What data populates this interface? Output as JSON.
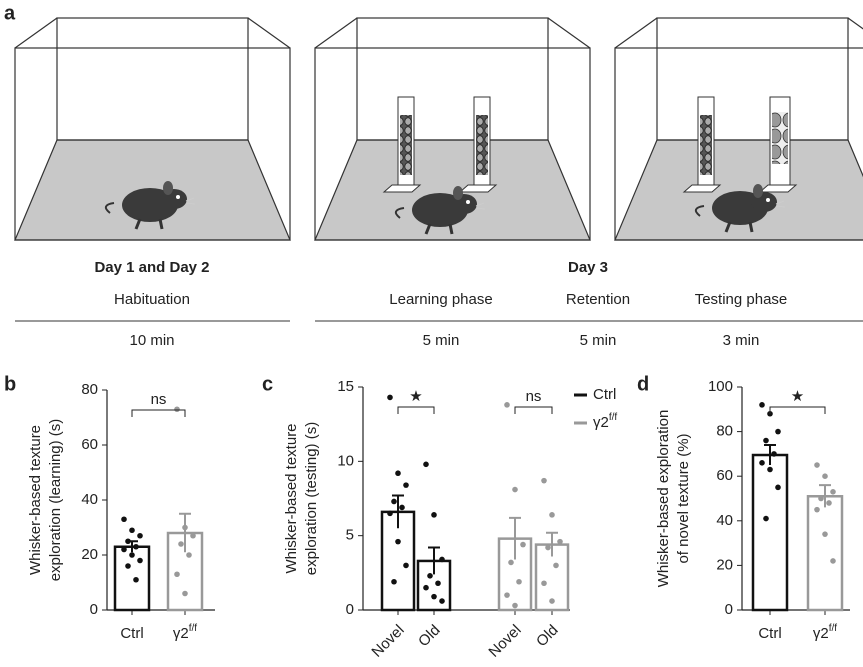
{
  "panel_a": {
    "letter": "a",
    "day12": "Day 1 and Day 2",
    "habituation": "Habituation",
    "habituation_time": "10 min",
    "day3": "Day 3",
    "learning": "Learning phase",
    "retention": "Retention",
    "testing": "Testing phase",
    "learning_time": "5 min",
    "retention_time": "5 min",
    "testing_time": "3 min"
  },
  "chart_data": [
    {
      "type": "bar",
      "panel": "b",
      "ylabel": [
        "Whisker-based texture",
        "exploration (learning) (s)"
      ],
      "categories": [
        "Ctrl",
        {
          "text": "γ2",
          "sup": "f/f"
        }
      ],
      "values": [
        23,
        28
      ],
      "errors": [
        2,
        7
      ],
      "points": [
        [
          33,
          29,
          27,
          25,
          23,
          22,
          20,
          18,
          16,
          11
        ],
        [
          73,
          30,
          27,
          24,
          20,
          13,
          6
        ]
      ],
      "colors": [
        "#111111",
        "#999999"
      ],
      "ylim": [
        0,
        80
      ],
      "yticks": [
        0,
        20,
        40,
        60,
        80
      ],
      "annotations": [
        "ns"
      ]
    },
    {
      "type": "bar",
      "panel": "c",
      "ylabel": [
        "Whisker-based texture",
        "exploration (testing) (s)"
      ],
      "categories": [
        "Novel",
        "Old",
        "Novel",
        "Old"
      ],
      "series": [
        {
          "name": "Ctrl",
          "color": "#111111",
          "values": [
            6.6,
            3.3,
            null,
            null
          ],
          "errors": [
            1.1,
            0.9,
            null,
            null
          ],
          "points": [
            [
              14.3,
              9.2,
              8.4,
              7.3,
              6.9,
              6.5,
              4.6,
              3.0,
              1.9
            ],
            [
              9.8,
              6.4,
              3.4,
              2.3,
              1.8,
              1.5,
              0.9,
              0.6
            ],
            null,
            null
          ]
        },
        {
          "name": {
            "text": "γ2",
            "sup": "f/f"
          },
          "color": "#999999",
          "values": [
            null,
            null,
            4.8,
            4.4
          ],
          "errors": [
            null,
            null,
            1.4,
            0.8
          ],
          "points": [
            null,
            null,
            [
              13.8,
              8.1,
              4.4,
              3.2,
              1.9,
              1.0,
              0.3
            ],
            [
              8.7,
              6.4,
              4.6,
              4.2,
              3.0,
              1.8,
              0.6
            ]
          ]
        }
      ],
      "ylim": [
        0,
        15
      ],
      "yticks": [
        0,
        5,
        10,
        15
      ],
      "annotations": [
        "★",
        "ns"
      ]
    },
    {
      "type": "bar",
      "panel": "d",
      "ylabel": [
        "Whisker-based exploration",
        "of novel texture (%)"
      ],
      "categories": [
        "Ctrl",
        {
          "text": "γ2",
          "sup": "f/f"
        }
      ],
      "values": [
        69.5,
        51
      ],
      "errors": [
        4.5,
        5
      ],
      "points": [
        [
          92,
          88,
          80,
          76,
          70,
          66,
          63,
          55,
          41
        ],
        [
          65,
          60,
          53,
          50,
          48,
          45,
          34,
          22
        ]
      ],
      "colors": [
        "#111111",
        "#999999"
      ],
      "ylim": [
        0,
        100
      ],
      "yticks": [
        0,
        20,
        40,
        60,
        80,
        100
      ],
      "annotations": [
        "★"
      ]
    }
  ]
}
